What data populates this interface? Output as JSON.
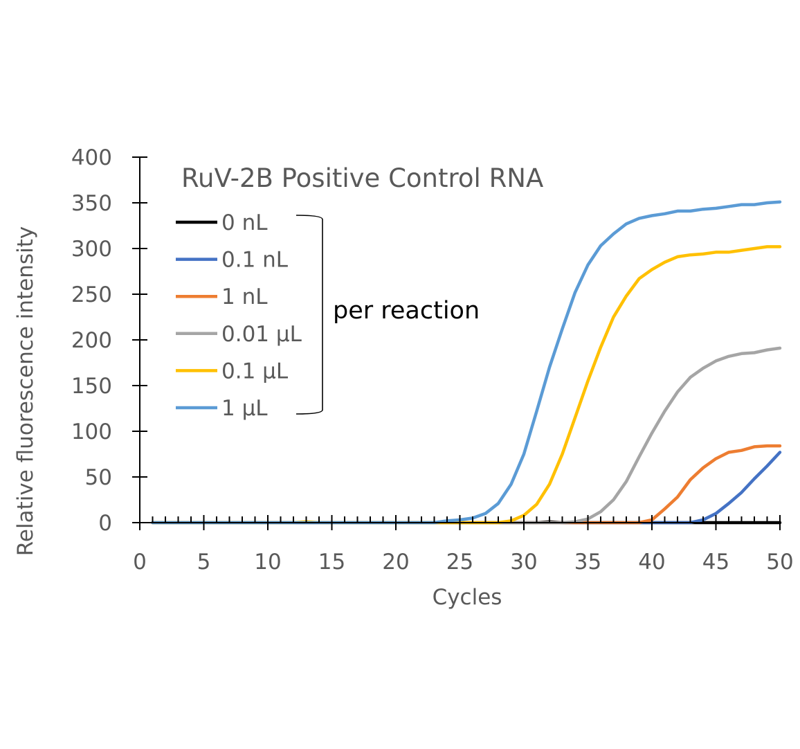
{
  "chart_data": {
    "type": "line",
    "title": "RuV-2B Positive Control RNA",
    "xlabel": "Cycles",
    "ylabel": "Relative fluorescence intensity",
    "xlim": [
      0,
      50
    ],
    "ylim": [
      0,
      400
    ],
    "xticks": [
      0,
      5,
      10,
      15,
      20,
      25,
      30,
      35,
      40,
      45,
      50
    ],
    "yticks": [
      0,
      50,
      100,
      150,
      200,
      250,
      300,
      350,
      400
    ],
    "grid": false,
    "legend_position": "top-left",
    "annotation": "per reaction",
    "x": [
      1,
      2,
      3,
      4,
      5,
      6,
      7,
      8,
      9,
      10,
      11,
      12,
      13,
      14,
      15,
      16,
      17,
      18,
      19,
      20,
      21,
      22,
      23,
      24,
      25,
      26,
      27,
      28,
      29,
      30,
      31,
      32,
      33,
      34,
      35,
      36,
      37,
      38,
      39,
      40,
      41,
      42,
      43,
      44,
      45,
      46,
      47,
      48,
      49,
      50
    ],
    "series": [
      {
        "name": "0 nL",
        "color": "#000000",
        "values": [
          0,
          0,
          0,
          0,
          0,
          0,
          0,
          0,
          0,
          0,
          0,
          0,
          0,
          0,
          0,
          0,
          0,
          0,
          0,
          0,
          0,
          0,
          0,
          0,
          0,
          0,
          0,
          0,
          0,
          0,
          0,
          1,
          0,
          0,
          0,
          0,
          0,
          0,
          0,
          0,
          0,
          0,
          0,
          0,
          0,
          0,
          0,
          0,
          0,
          0
        ]
      },
      {
        "name": "0.1 nL",
        "color": "#4472C4",
        "values": [
          0,
          0,
          0,
          0,
          0,
          0,
          0,
          0,
          0,
          0,
          0,
          0,
          0,
          0,
          0,
          0,
          0,
          0,
          0,
          0,
          0,
          0,
          0,
          0,
          0,
          0,
          0,
          0,
          0,
          0,
          0,
          0,
          0,
          0,
          0,
          0,
          0,
          0,
          0,
          0,
          0,
          0,
          0,
          3,
          10,
          21,
          33,
          48,
          62,
          77
        ]
      },
      {
        "name": "1 nL",
        "color": "#ED7D31",
        "values": [
          0,
          0,
          0,
          0,
          0,
          0,
          0,
          0,
          0,
          0,
          0,
          0,
          0,
          0,
          0,
          0,
          0,
          0,
          0,
          0,
          0,
          0,
          0,
          0,
          0,
          0,
          0,
          0,
          0,
          0,
          0,
          0,
          0,
          0,
          0,
          0,
          0,
          0,
          0,
          3,
          15,
          28,
          47,
          60,
          70,
          77,
          79,
          83,
          84,
          84
        ]
      },
      {
        "name": "0.01 µL",
        "color": "#A5A5A5",
        "values": [
          0,
          0,
          0,
          0,
          0,
          0,
          0,
          0,
          0,
          0,
          0,
          0,
          0,
          0,
          0,
          0,
          0,
          0,
          0,
          0,
          0,
          0,
          0,
          0,
          0,
          0,
          0,
          0,
          0,
          0,
          0,
          0,
          0,
          1,
          4,
          12,
          25,
          45,
          72,
          98,
          122,
          143,
          159,
          169,
          177,
          182,
          185,
          186,
          189,
          191
        ]
      },
      {
        "name": "0.1 µL",
        "color": "#FFC000",
        "values": [
          0,
          0,
          0,
          0,
          0,
          0,
          0,
          0,
          0,
          0,
          0,
          0,
          1,
          0,
          0,
          0,
          0,
          0,
          0,
          0,
          0,
          0,
          0,
          0,
          0,
          0,
          0,
          0,
          2,
          8,
          20,
          42,
          75,
          115,
          155,
          192,
          225,
          248,
          267,
          277,
          285,
          291,
          293,
          294,
          296,
          296,
          298,
          300,
          302,
          302
        ]
      },
      {
        "name": "1 µL",
        "color": "#5B9BD5",
        "values": [
          0,
          0,
          0,
          0,
          0,
          0,
          0,
          0,
          0,
          0,
          0,
          0,
          0,
          0,
          0,
          0,
          0,
          0,
          0,
          0,
          0,
          0,
          0,
          2,
          3,
          5,
          10,
          21,
          42,
          75,
          122,
          170,
          212,
          252,
          282,
          303,
          316,
          327,
          333,
          336,
          338,
          341,
          341,
          343,
          344,
          346,
          348,
          348,
          350,
          351
        ]
      }
    ]
  }
}
